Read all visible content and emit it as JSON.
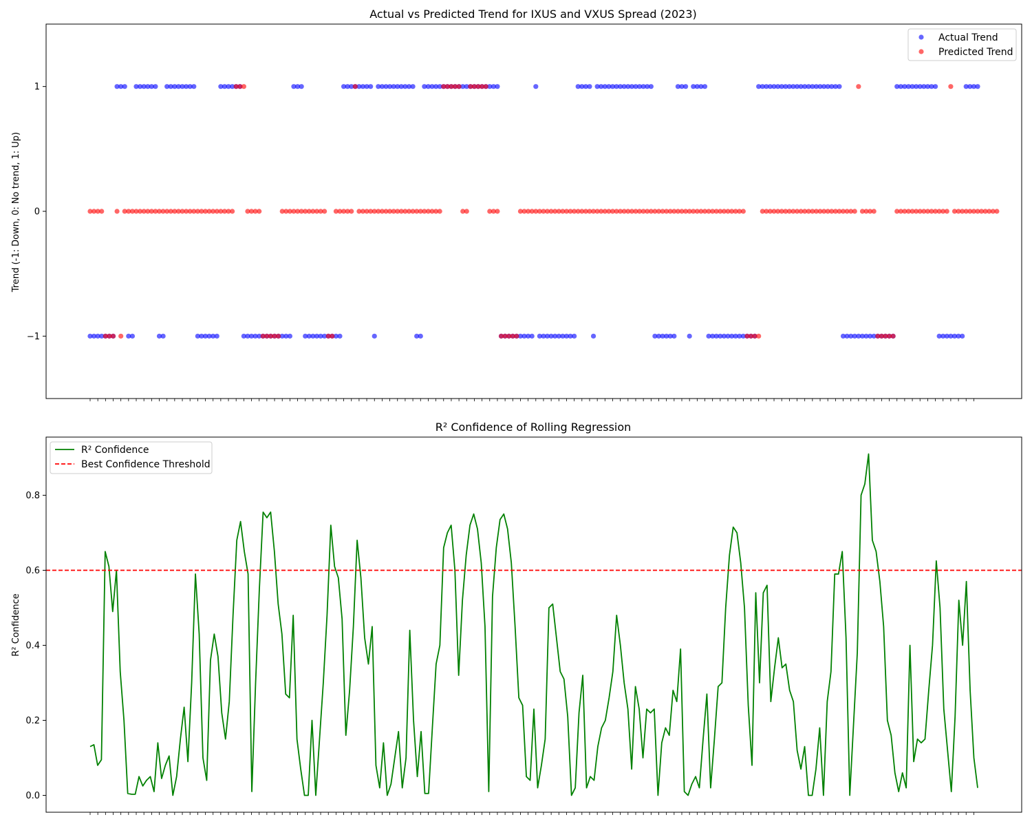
{
  "chart_data": [
    {
      "type": "scatter",
      "title": "Actual vs Predicted Trend for IXUS and VXUS Spread (2023)",
      "xlabel": "",
      "ylabel": "Trend (-1: Down, 0: No trend, 1: Up)",
      "ylim": [
        -1.5,
        1.5
      ],
      "yticks": [
        1,
        0,
        -1
      ],
      "ytick_labels": [
        "1",
        "0",
        "−1"
      ],
      "grid": false,
      "legend": "top-right",
      "x_tick_labels_visible": false,
      "series": [
        {
          "name": "Actual Trend",
          "color": "#0000ff",
          "values": [
            -1,
            -1,
            -1,
            -1,
            -1,
            -1,
            -1,
            1,
            1,
            1,
            -1,
            -1,
            1,
            1,
            1,
            1,
            1,
            1,
            -1,
            -1,
            1,
            1,
            1,
            1,
            1,
            1,
            1,
            1,
            -1,
            -1,
            -1,
            -1,
            -1,
            -1,
            1,
            1,
            1,
            1,
            1,
            1,
            -1,
            -1,
            -1,
            -1,
            -1,
            -1,
            -1,
            -1,
            -1,
            -1,
            -1,
            -1,
            -1,
            1,
            1,
            1,
            -1,
            -1,
            -1,
            -1,
            -1,
            -1,
            -1,
            -1,
            -1,
            -1,
            1,
            1,
            1,
            1,
            1,
            1,
            1,
            1,
            -1,
            1,
            1,
            1,
            1,
            1,
            1,
            1,
            1,
            1,
            1,
            -1,
            -1,
            1,
            1,
            1,
            1,
            1,
            1,
            1,
            1,
            1,
            1,
            1,
            1,
            1,
            1,
            1,
            1,
            1,
            1,
            1,
            1,
            -1,
            -1,
            -1,
            -1,
            -1,
            -1,
            -1,
            -1,
            -1,
            1,
            -1,
            -1,
            -1,
            -1,
            -1,
            -1,
            -1,
            -1,
            -1,
            -1,
            1,
            1,
            1,
            1,
            -1,
            1,
            1,
            1,
            1,
            1,
            1,
            1,
            1,
            1,
            1,
            1,
            1,
            1,
            1,
            1,
            -1,
            -1,
            -1,
            -1,
            -1,
            -1,
            1,
            1,
            1,
            -1,
            1,
            1,
            1,
            1,
            -1,
            -1,
            -1,
            -1,
            -1,
            -1,
            -1,
            -1,
            -1,
            -1,
            -1,
            -1,
            -1,
            1,
            1,
            1,
            1,
            1,
            1,
            1,
            1,
            1,
            1,
            1,
            1,
            1,
            1,
            1,
            1,
            1,
            1,
            1,
            1,
            1,
            1,
            -1,
            -1,
            -1,
            -1,
            -1,
            -1,
            -1,
            -1,
            -1,
            -1,
            -1,
            -1,
            -1,
            -1,
            1,
            1,
            1,
            1,
            1,
            1,
            1,
            1,
            1,
            1,
            1,
            -1,
            -1,
            -1,
            -1,
            -1,
            -1,
            -1,
            1,
            1,
            1,
            1
          ]
        },
        {
          "name": "Predicted Trend",
          "color": "#ff0000",
          "values": [
            0,
            0,
            0,
            0,
            -1,
            -1,
            -1,
            0,
            -1,
            0,
            0,
            0,
            0,
            0,
            0,
            0,
            0,
            0,
            0,
            0,
            0,
            0,
            0,
            0,
            0,
            0,
            0,
            0,
            0,
            0,
            0,
            0,
            0,
            0,
            0,
            0,
            0,
            0,
            1,
            1,
            1,
            0,
            0,
            0,
            0,
            -1,
            -1,
            -1,
            -1,
            -1,
            0,
            0,
            0,
            0,
            0,
            0,
            0,
            0,
            0,
            0,
            0,
            0,
            -1,
            -1,
            0,
            0,
            0,
            0,
            0,
            1,
            0,
            0,
            0,
            0,
            0,
            0,
            0,
            0,
            0,
            0,
            0,
            0,
            0,
            0,
            0,
            0,
            0,
            0,
            0,
            0,
            0,
            0,
            1,
            1,
            1,
            1,
            1,
            0,
            0,
            1,
            1,
            1,
            1,
            1,
            0,
            0,
            0,
            -1,
            -1,
            -1,
            -1,
            -1,
            0,
            0,
            0,
            0,
            0,
            0,
            0,
            0,
            0,
            0,
            0,
            0,
            0,
            0,
            0,
            0,
            0,
            0,
            0,
            0,
            0,
            0,
            0,
            0,
            0,
            0,
            0,
            0,
            0,
            0,
            0,
            0,
            0,
            0,
            0,
            0,
            0,
            0,
            0,
            0,
            0,
            0,
            0,
            0,
            0,
            0,
            0,
            0,
            0,
            0,
            0,
            0,
            0,
            0,
            0,
            0,
            0,
            0,
            0,
            -1,
            -1,
            -1,
            -1,
            0,
            0,
            0,
            0,
            0,
            0,
            0,
            0,
            0,
            0,
            0,
            0,
            0,
            0,
            0,
            0,
            0,
            0,
            0,
            0,
            0,
            0,
            0,
            0,
            0,
            1,
            0,
            0,
            0,
            0,
            -1,
            -1,
            -1,
            -1,
            -1,
            0,
            0,
            0,
            0,
            0,
            0,
            0,
            0,
            0,
            0,
            0,
            0,
            0,
            0,
            1,
            0,
            0,
            0,
            0,
            0,
            0,
            0,
            0,
            0,
            0,
            0,
            0
          ]
        }
      ]
    },
    {
      "type": "line",
      "title": "R² Confidence of Rolling Regression",
      "xlabel": "",
      "ylabel": "R² Confidence",
      "ylim": [
        -0.045,
        0.955
      ],
      "yticks": [
        0.0,
        0.2,
        0.4,
        0.6,
        0.8
      ],
      "ytick_labels": [
        "0.0",
        "0.2",
        "0.4",
        "0.6",
        "0.8"
      ],
      "grid": false,
      "legend": "top-left",
      "x_tick_labels_visible": false,
      "threshold": {
        "name": "Best Confidence Threshold",
        "value": 0.6,
        "color": "#ff0000",
        "style": "dashed"
      },
      "series": [
        {
          "name": "R² Confidence",
          "color": "#008000",
          "values": [
            0.13,
            0.135,
            0.08,
            0.095,
            0.65,
            0.61,
            0.49,
            0.6,
            0.33,
            0.2,
            0.005,
            0.003,
            0.003,
            0.05,
            0.025,
            0.04,
            0.05,
            0.01,
            0.14,
            0.045,
            0.08,
            0.105,
            0.0,
            0.05,
            0.15,
            0.235,
            0.09,
            0.3,
            0.59,
            0.43,
            0.1,
            0.04,
            0.36,
            0.43,
            0.37,
            0.22,
            0.15,
            0.25,
            0.48,
            0.68,
            0.73,
            0.65,
            0.59,
            0.01,
            0.3,
            0.55,
            0.755,
            0.74,
            0.755,
            0.65,
            0.51,
            0.43,
            0.27,
            0.26,
            0.48,
            0.15,
            0.07,
            0.0,
            0.0,
            0.2,
            0.0,
            0.15,
            0.3,
            0.48,
            0.72,
            0.61,
            0.58,
            0.47,
            0.16,
            0.28,
            0.45,
            0.68,
            0.58,
            0.42,
            0.35,
            0.45,
            0.08,
            0.02,
            0.14,
            0.0,
            0.03,
            0.1,
            0.17,
            0.02,
            0.1,
            0.44,
            0.2,
            0.05,
            0.17,
            0.005,
            0.005,
            0.18,
            0.35,
            0.4,
            0.66,
            0.7,
            0.72,
            0.6,
            0.32,
            0.52,
            0.64,
            0.72,
            0.75,
            0.71,
            0.62,
            0.45,
            0.01,
            0.53,
            0.66,
            0.735,
            0.75,
            0.71,
            0.62,
            0.45,
            0.26,
            0.24,
            0.05,
            0.04,
            0.23,
            0.02,
            0.08,
            0.15,
            0.5,
            0.51,
            0.42,
            0.33,
            0.31,
            0.21,
            0.0,
            0.02,
            0.22,
            0.32,
            0.02,
            0.05,
            0.04,
            0.13,
            0.18,
            0.2,
            0.26,
            0.33,
            0.48,
            0.4,
            0.3,
            0.23,
            0.07,
            0.29,
            0.23,
            0.1,
            0.23,
            0.22,
            0.23,
            0.0,
            0.14,
            0.18,
            0.16,
            0.28,
            0.25,
            0.39,
            0.01,
            0.0,
            0.03,
            0.05,
            0.02,
            0.15,
            0.27,
            0.02,
            0.15,
            0.29,
            0.3,
            0.5,
            0.64,
            0.715,
            0.7,
            0.62,
            0.5,
            0.24,
            0.08,
            0.54,
            0.3,
            0.54,
            0.56,
            0.25,
            0.34,
            0.42,
            0.34,
            0.35,
            0.28,
            0.25,
            0.12,
            0.07,
            0.13,
            0.0,
            0.0,
            0.07,
            0.18,
            0.0,
            0.25,
            0.33,
            0.59,
            0.59,
            0.65,
            0.42,
            0.0,
            0.19,
            0.38,
            0.8,
            0.83,
            0.91,
            0.68,
            0.65,
            0.57,
            0.45,
            0.2,
            0.16,
            0.06,
            0.01,
            0.06,
            0.02,
            0.4,
            0.09,
            0.15,
            0.14,
            0.15,
            0.28,
            0.4,
            0.625,
            0.5,
            0.23,
            0.12,
            0.01,
            0.21,
            0.52,
            0.4,
            0.57,
            0.28,
            0.1,
            0.02
          ]
        }
      ]
    }
  ],
  "legends": {
    "top": [
      "Actual Trend",
      "Predicted Trend"
    ],
    "bottom": [
      "R² Confidence",
      "Best Confidence Threshold"
    ]
  }
}
